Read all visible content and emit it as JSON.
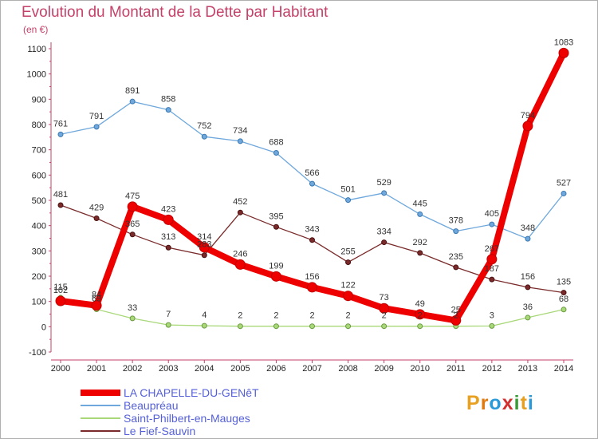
{
  "title": "Evolution du Montant de la Dette par Habitant",
  "unit": "(en €)",
  "logo": {
    "text": "Proxiti",
    "letters": [
      "P",
      "r",
      "o",
      "x",
      "i",
      "t",
      "i"
    ],
    "colors": [
      "#e8a020",
      "#e07a10",
      "#2a9ad8",
      "#d03030",
      "#3a9a38",
      "#e8a020",
      "#2a9ad8"
    ]
  },
  "chart_data": {
    "type": "line",
    "x": [
      "2000",
      "2001",
      "2002",
      "2003",
      "2004",
      "2005",
      "2006",
      "2007",
      "2008",
      "2009",
      "2010",
      "2011",
      "2012",
      "2013",
      "2014"
    ],
    "y_ticks": [
      -100,
      0,
      100,
      200,
      300,
      400,
      500,
      600,
      700,
      800,
      900,
      1000,
      1100
    ],
    "ylim": [
      -100,
      1100
    ],
    "grid": false,
    "legend_position": "bottom-left",
    "series": [
      {
        "name": "LA CHAPELLE-DU-GENêT",
        "color": "#ee0000",
        "width": 8,
        "marker": 6,
        "values": [
          102,
          84,
          475,
          423,
          314,
          246,
          199,
          156,
          122,
          73,
          49,
          25,
          267,
          794,
          1083
        ],
        "labels": [
          "102",
          "84",
          "475",
          "423",
          "314",
          "246",
          "199",
          "156",
          "122",
          "73",
          "49",
          "25",
          "267",
          "794",
          "1083"
        ]
      },
      {
        "name": "Beaupréau",
        "color": "#6fa8dc",
        "width": 1.3,
        "marker": 3,
        "values": [
          761,
          791,
          891,
          858,
          752,
          734,
          688,
          566,
          501,
          529,
          445,
          378,
          405,
          348,
          527
        ],
        "labels": [
          "761",
          "791",
          "891",
          "858",
          "752",
          "734",
          "688",
          "566",
          "501",
          "529",
          "445",
          "378",
          "405",
          "348",
          "527"
        ]
      },
      {
        "name": "Saint-Philbert-en-Mauges",
        "color": "#a8d878",
        "width": 1.3,
        "marker": 3,
        "values": [
          115,
          69,
          33,
          7,
          4,
          2,
          2,
          2,
          2,
          2,
          2,
          2,
          3,
          36,
          68
        ],
        "labels": [
          "115",
          "69",
          "33",
          "7",
          "4",
          "2",
          "2",
          "2",
          "2",
          "2",
          "2",
          "2",
          "3",
          "36",
          "68"
        ]
      },
      {
        "name": "Le Fief-Sauvin",
        "color": "#7a2a2a",
        "width": 1.3,
        "marker": 3,
        "values": [
          481,
          429,
          365,
          313,
          283,
          452,
          395,
          343,
          255,
          334,
          292,
          235,
          187,
          156,
          135
        ],
        "labels": [
          "481",
          "429",
          "365",
          "313",
          "283",
          "452",
          "395",
          "343",
          "255",
          "334",
          "292",
          "235",
          "187",
          "156",
          "135"
        ]
      }
    ]
  }
}
